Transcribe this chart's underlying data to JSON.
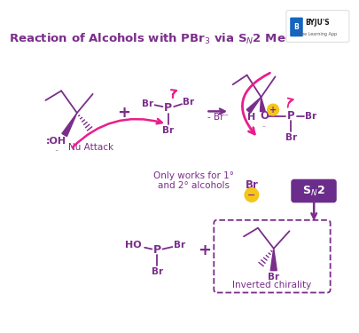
{
  "title": "Reaction of Alcohols with PBr$_3$ via S$_N$2 Mechanism",
  "bg_color": "#ffffff",
  "purple": "#7B2D8B",
  "pink": "#E91E8C",
  "sn2_box_color": "#6B2D8B",
  "note_text": "Only works for 1°\nand 2° alcohols",
  "nu_attack": "Nu Attack",
  "br_minus": "- Br⁻",
  "inverted": "Inverted chirality",
  "sn2_label": "S$_N$2"
}
